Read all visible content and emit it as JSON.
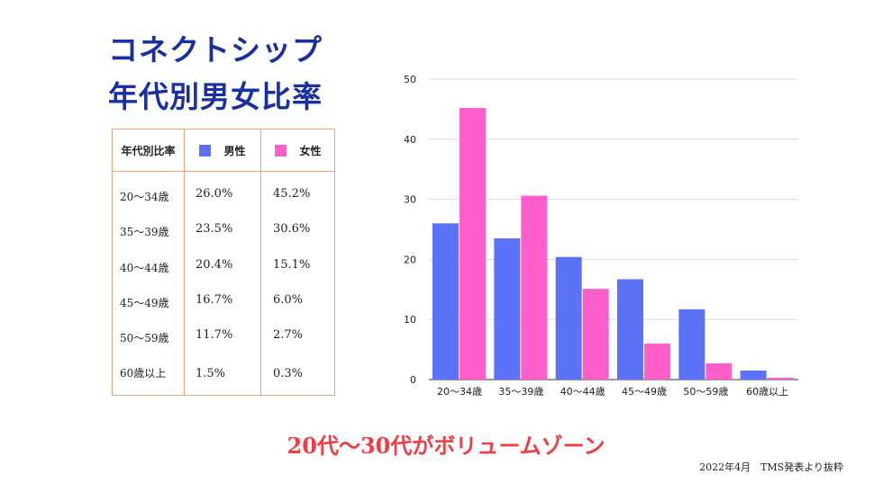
{
  "title": {
    "line1": "コネクトシップ",
    "line2": "年代別男女比率"
  },
  "table": {
    "header": {
      "category": "年代別比率",
      "male": "男性",
      "female": "女性"
    },
    "colors": {
      "male": "#5b72f7",
      "female": "#ff5fcb",
      "border": "#f0a27a"
    },
    "rows": [
      {
        "age": "20〜34歳",
        "male": "26.0%",
        "female": "45.2%"
      },
      {
        "age": "35〜39歳",
        "male": "23.5%",
        "female": "30.6%"
      },
      {
        "age": "40〜44歳",
        "male": "20.4%",
        "female": "15.1%"
      },
      {
        "age": "45〜49歳",
        "male": "16.7%",
        "female": "6.0%"
      },
      {
        "age": "50〜59歳",
        "male": "11.7%",
        "female": "2.7%"
      },
      {
        "age": "60歳以上",
        "male": "1.5%",
        "female": "0.3%"
      }
    ]
  },
  "chart_data": {
    "type": "bar",
    "categories": [
      "20〜34歳",
      "35〜39歳",
      "40〜44歳",
      "45〜49歳",
      "50〜59歳",
      "60歳以上"
    ],
    "series": [
      {
        "name": "男性",
        "color": "#5b72f7",
        "values": [
          26.0,
          23.5,
          20.4,
          16.7,
          11.7,
          1.5
        ]
      },
      {
        "name": "女性",
        "color": "#ff5fcb",
        "values": [
          45.2,
          30.6,
          15.1,
          6.0,
          2.7,
          0.3
        ]
      }
    ],
    "ylim": [
      0,
      50
    ],
    "yticks": [
      0,
      10,
      20,
      30,
      40,
      50
    ],
    "grid": true,
    "legend": "none"
  },
  "tagline": "20代〜30代がボリュームゾーン",
  "source": "2022年4月　TMS発表より抜粋"
}
